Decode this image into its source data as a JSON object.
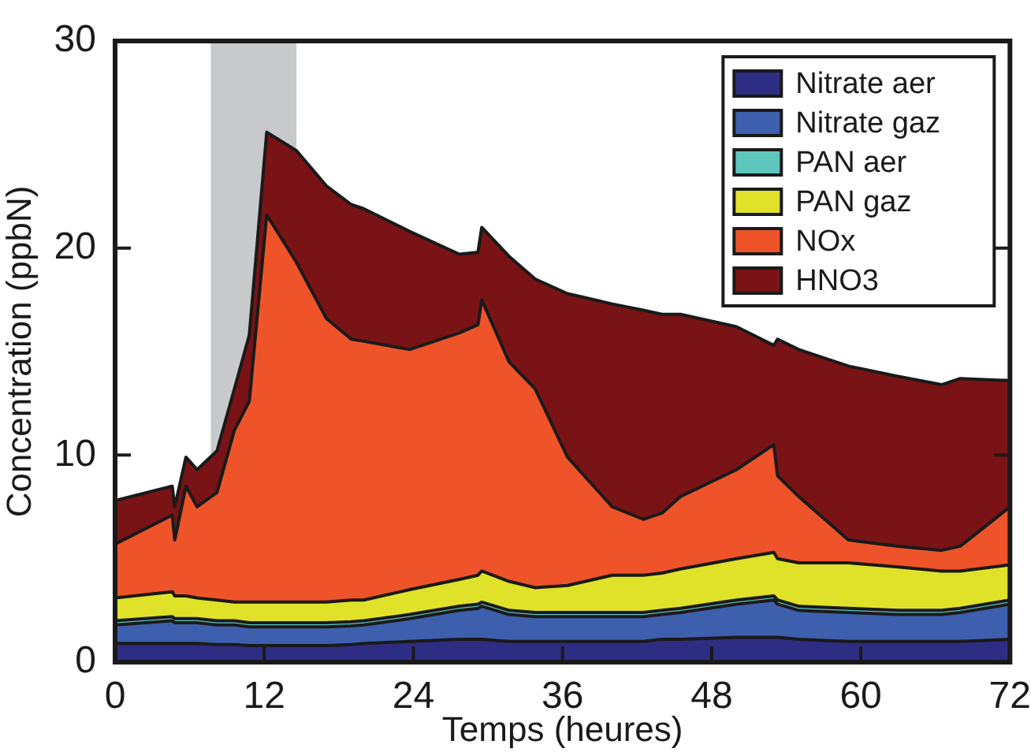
{
  "chart_data": {
    "type": "area",
    "xlabel": "Temps (heures)",
    "ylabel": "Concentration (ppbN)",
    "stacked": true,
    "legend": "top right",
    "x": [
      0,
      4.6,
      4.8,
      5.7,
      6.6,
      8.2,
      9.6,
      10.8,
      12.2,
      14.6,
      17,
      19,
      20,
      23.7,
      27.7,
      29.2,
      29.5,
      31.7,
      33.8,
      36.4,
      40,
      42.5,
      44,
      45.5,
      50,
      53,
      53.3,
      55,
      59,
      63,
      66.5,
      68,
      72
    ],
    "series": [
      {
        "name": "Nitrate aer",
        "color": "#2e2d84",
        "values": [
          0.9,
          0.9,
          0.9,
          0.9,
          0.9,
          0.85,
          0.85,
          0.8,
          0.8,
          0.8,
          0.8,
          0.85,
          0.9,
          1.0,
          1.1,
          1.1,
          1.1,
          1.0,
          1.0,
          1.0,
          1.0,
          1.0,
          1.1,
          1.1,
          1.2,
          1.2,
          1.2,
          1.1,
          1.0,
          1.0,
          1.0,
          1.0,
          1.1
        ]
      },
      {
        "name": "Nitrate gaz",
        "color": "#3d5fad",
        "values": [
          0.9,
          1.1,
          1.0,
          1.0,
          1.0,
          0.95,
          0.95,
          0.9,
          0.9,
          0.9,
          0.9,
          0.9,
          0.9,
          1.1,
          1.4,
          1.5,
          1.6,
          1.3,
          1.2,
          1.2,
          1.2,
          1.2,
          1.2,
          1.3,
          1.6,
          1.8,
          1.6,
          1.4,
          1.4,
          1.3,
          1.3,
          1.4,
          1.7
        ]
      },
      {
        "name": "PAN aer",
        "color": "#5fc6be",
        "values": [
          0.2,
          0.2,
          0.2,
          0.2,
          0.2,
          0.2,
          0.2,
          0.2,
          0.2,
          0.2,
          0.2,
          0.2,
          0.2,
          0.2,
          0.2,
          0.2,
          0.2,
          0.2,
          0.2,
          0.2,
          0.2,
          0.2,
          0.2,
          0.2,
          0.2,
          0.2,
          0.2,
          0.2,
          0.2,
          0.2,
          0.2,
          0.2,
          0.2
        ]
      },
      {
        "name": "PAN gaz",
        "color": "#e0e22a",
        "values": [
          1.1,
          1.2,
          1.1,
          1.1,
          1.0,
          1.0,
          0.9,
          1.0,
          1.0,
          1.0,
          1.0,
          1.05,
          1.0,
          1.2,
          1.3,
          1.4,
          1.5,
          1.4,
          1.2,
          1.3,
          1.8,
          1.8,
          1.8,
          1.9,
          2.0,
          2.1,
          2.0,
          2.1,
          2.2,
          2.1,
          1.9,
          1.8,
          1.7
        ]
      },
      {
        "name": "NOx",
        "color": "#ef532a",
        "values": [
          2.6,
          3.7,
          2.7,
          5.3,
          4.4,
          5.2,
          8.3,
          9.7,
          18.7,
          16.4,
          13.7,
          12.6,
          12.5,
          11.6,
          11.9,
          12.1,
          13.1,
          10.6,
          9.6,
          6.2,
          3.3,
          2.7,
          2.9,
          3.5,
          4.3,
          5.2,
          4.0,
          3.2,
          1.1,
          1.0,
          1.0,
          1.2,
          2.8
        ]
      },
      {
        "name": "HNO3",
        "color": "#7a1315",
        "values": [
          2.1,
          1.4,
          1.6,
          1.4,
          1.8,
          2.0,
          2.0,
          3.2,
          4.0,
          5.4,
          6.4,
          6.5,
          6.4,
          5.7,
          3.8,
          3.5,
          3.5,
          5.1,
          5.3,
          7.9,
          9.8,
          10.1,
          9.6,
          8.8,
          6.9,
          4.8,
          6.6,
          7.1,
          8.4,
          8.2,
          8.0,
          8.1,
          6.1
        ]
      }
    ],
    "xlim": [
      0,
      72
    ],
    "xticks": [
      0,
      12,
      24,
      36,
      48,
      60,
      72
    ],
    "ylim": [
      0,
      30
    ],
    "yticks": [
      0,
      10,
      20,
      30
    ],
    "bands": [
      {
        "axis": "x",
        "from": 7.7,
        "to": 14.6,
        "color": "#c8c9cb"
      }
    ]
  }
}
